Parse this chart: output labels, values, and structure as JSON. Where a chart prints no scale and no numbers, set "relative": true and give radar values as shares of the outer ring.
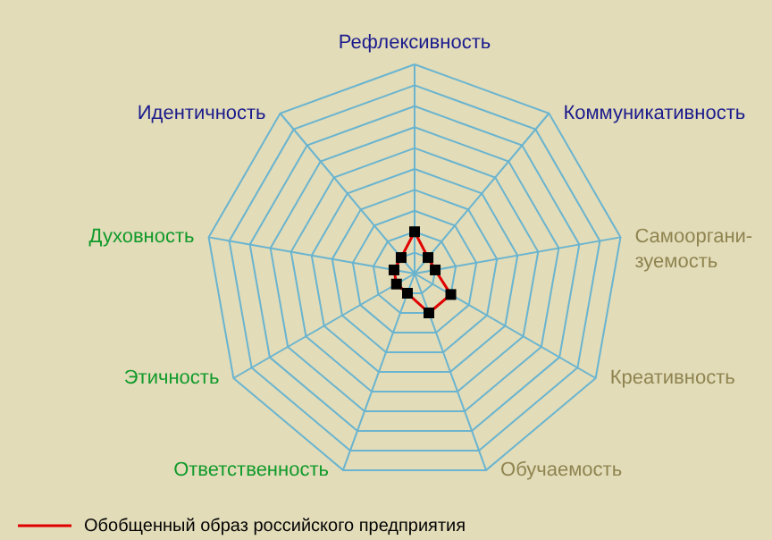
{
  "chart_data": {
    "type": "radar",
    "relative": true,
    "legend": "bottom left",
    "marker": "square",
    "line_style": "solid",
    "categories": [
      "Рефлексивность",
      "Коммуникативность",
      "Самооргани-\nзуемость",
      "Креативность",
      "Обучаемость",
      "Ответственность",
      "Этичность",
      "Духовность",
      "Идентичность"
    ],
    "series": [
      {
        "name": "Обобщенный образ российского предприятия",
        "color": "#e00000",
        "values": [
          0.2,
          0.1,
          0.1,
          0.2,
          0.2,
          0.1,
          0.1,
          0.1,
          0.1
        ]
      }
    ]
  }
}
